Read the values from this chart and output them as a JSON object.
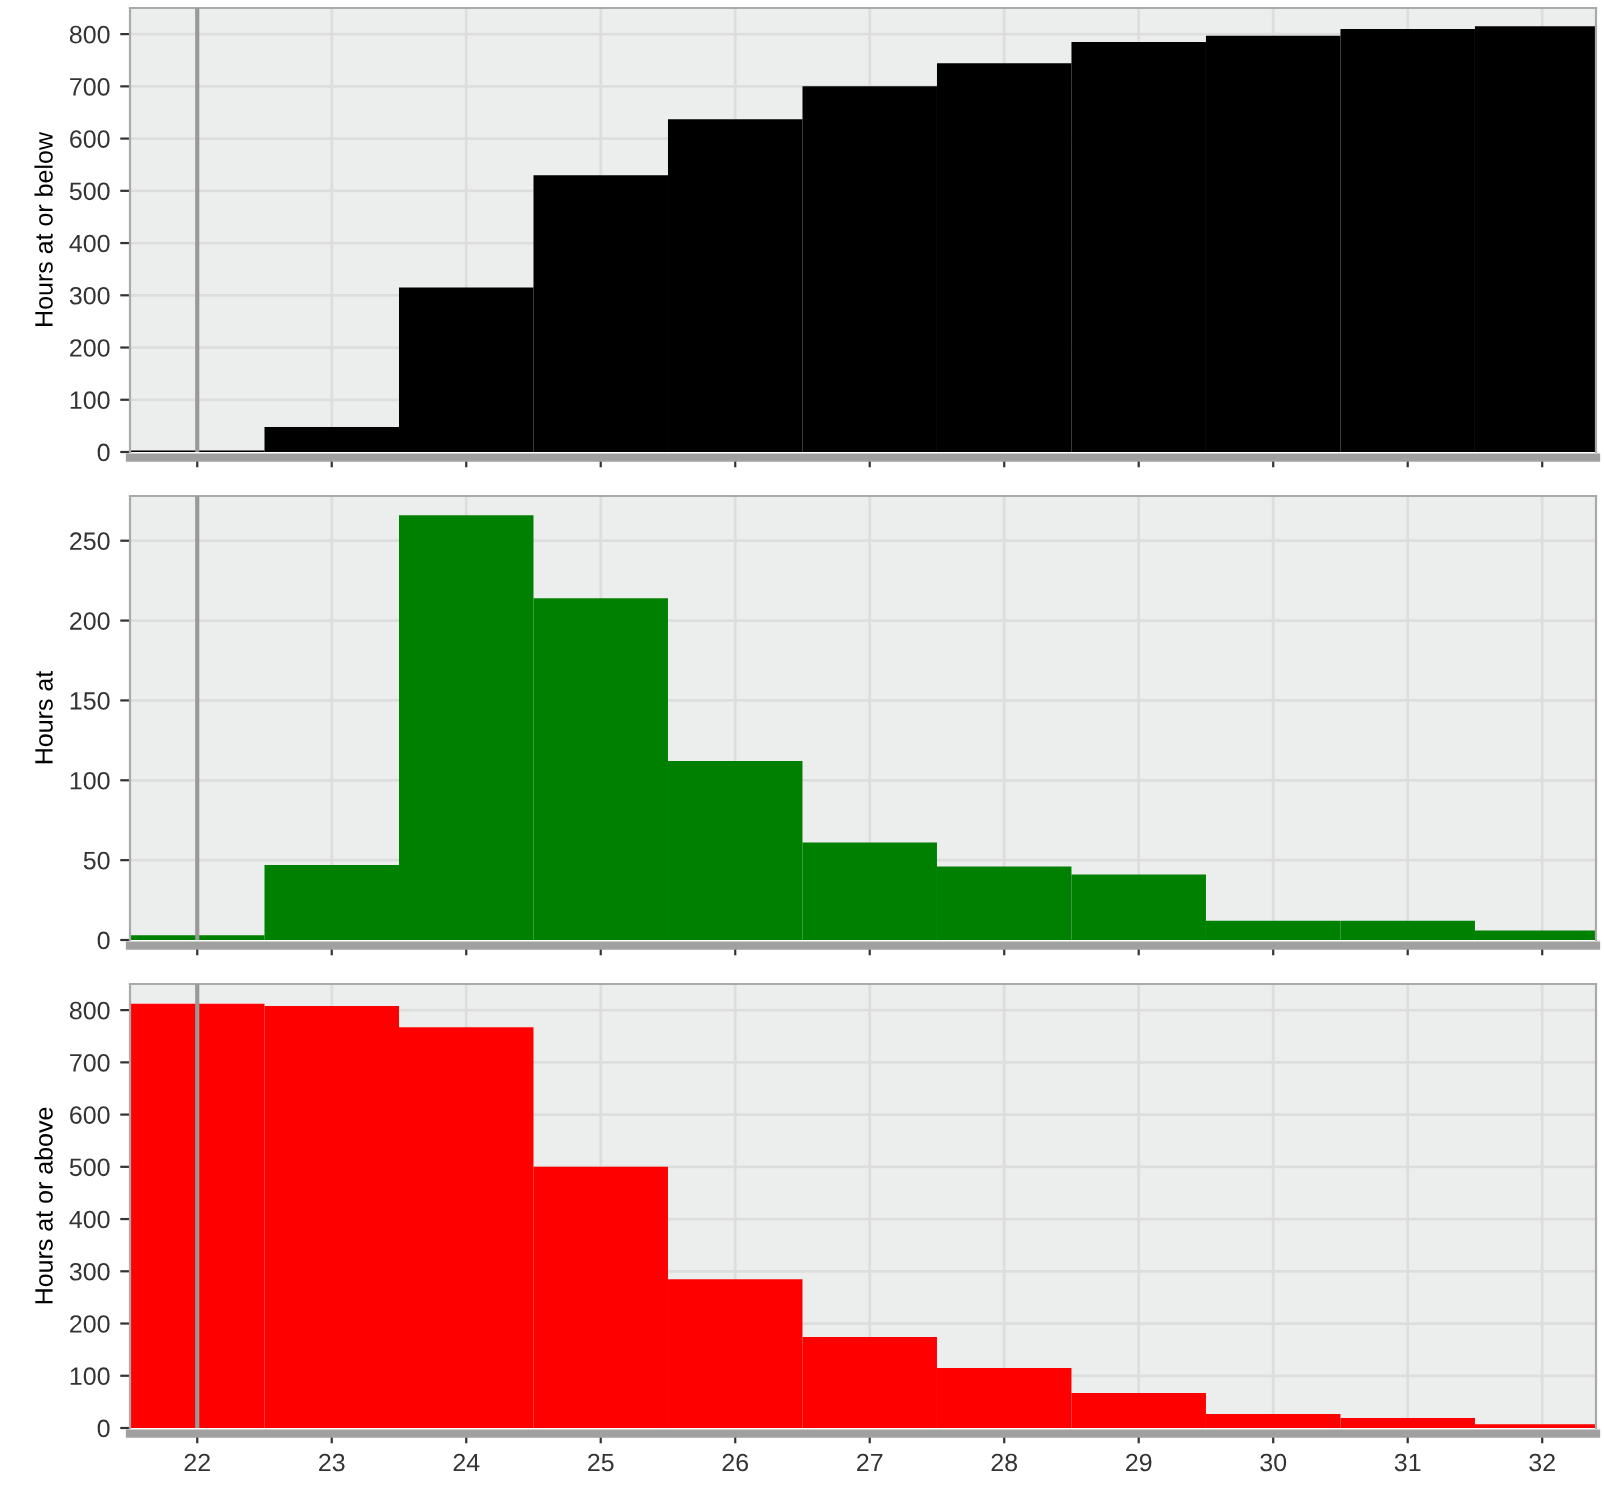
{
  "chart_data": [
    {
      "type": "histogram",
      "ylabel": "Hours at or below",
      "bins": [
        21.5,
        22.5,
        23.5,
        24.5,
        25.5,
        26.5,
        27.5,
        28.5,
        29.5,
        30.5,
        31.5,
        32.5
      ],
      "values": [
        3,
        48,
        315,
        530,
        637,
        700,
        744,
        785,
        797,
        810,
        815
      ],
      "color": "#000000",
      "xlim": [
        21.5,
        32.4
      ],
      "xticks": [
        22,
        23,
        24,
        25,
        26,
        27,
        28,
        29,
        30,
        31,
        32
      ],
      "ylim": [
        0,
        850
      ],
      "yticks": [
        0,
        100,
        200,
        300,
        400,
        500,
        600,
        700,
        800
      ],
      "grid": true,
      "tick_labels": "y",
      "ref_lines": [
        {
          "axis": "x",
          "value": 22,
          "color": "#999999"
        }
      ]
    },
    {
      "type": "histogram",
      "ylabel": "Hours at",
      "bins": [
        21.5,
        22.5,
        23.5,
        24.5,
        25.5,
        26.5,
        27.5,
        28.5,
        29.5,
        30.5,
        31.5,
        32.5
      ],
      "values": [
        3,
        47,
        266,
        214,
        112,
        61,
        46,
        41,
        12,
        12,
        6
      ],
      "color": "#008000",
      "xlim": [
        21.5,
        32.4
      ],
      "xticks": [
        22,
        23,
        24,
        25,
        26,
        27,
        28,
        29,
        30,
        31,
        32
      ],
      "ylim": [
        0,
        278
      ],
      "yticks": [
        0,
        50,
        100,
        150,
        200,
        250
      ],
      "grid": true,
      "tick_labels": "y",
      "ref_lines": [
        {
          "axis": "x",
          "value": 22,
          "color": "#999999"
        }
      ]
    },
    {
      "type": "histogram",
      "ylabel": "Hours at or above",
      "bins": [
        21.5,
        22.5,
        23.5,
        24.5,
        25.5,
        26.5,
        27.5,
        28.5,
        29.5,
        30.5,
        31.5,
        32.5
      ],
      "values": [
        812,
        808,
        767,
        500,
        285,
        174,
        115,
        67,
        27,
        19,
        7
      ],
      "color": "#ff0000",
      "xlim": [
        21.5,
        32.4
      ],
      "xticks": [
        22,
        23,
        24,
        25,
        26,
        27,
        28,
        29,
        30,
        31,
        32
      ],
      "ylim": [
        0,
        850
      ],
      "yticks": [
        0,
        100,
        200,
        300,
        400,
        500,
        600,
        700,
        800
      ],
      "grid": true,
      "ref_lines": [
        {
          "axis": "x",
          "value": 22,
          "color": "#999999"
        }
      ]
    }
  ]
}
